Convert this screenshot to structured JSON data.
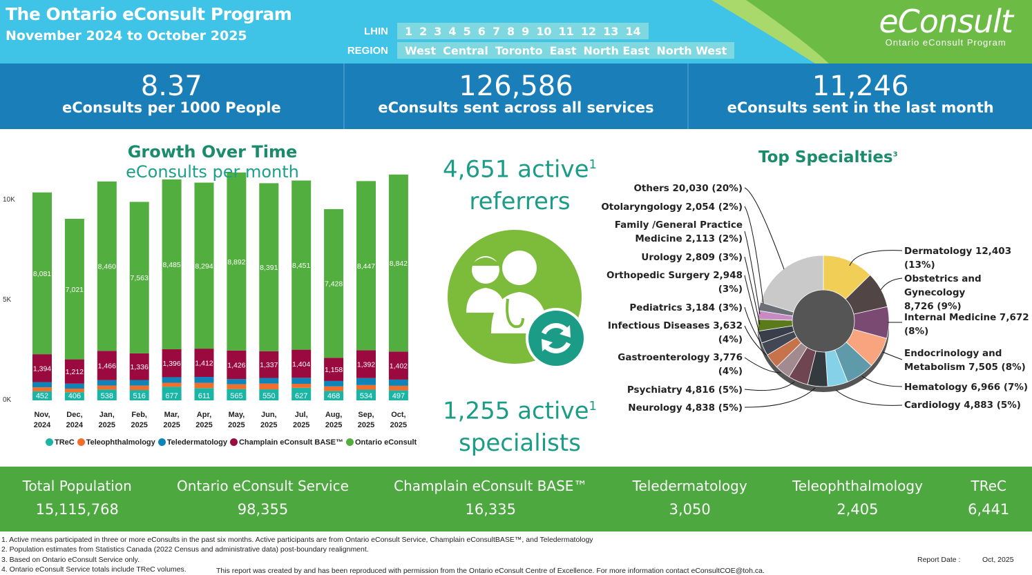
{
  "header": {
    "title": "The Ontario eConsult Program",
    "subtitle": "November 2024 to October 2025",
    "lhin_label": "LHIN",
    "region_label": "REGION",
    "lhins": [
      "1",
      "2",
      "3",
      "4",
      "5",
      "6",
      "7",
      "8",
      "9",
      "10",
      "11",
      "12",
      "13",
      "14"
    ],
    "regions": [
      "West",
      "Central",
      "Toronto",
      "East",
      "North East",
      "North West"
    ],
    "logo_text": "eConsult",
    "logo_sub": "Ontario eConsult Program"
  },
  "kpis": [
    {
      "value": "8.37",
      "label": "eConsults per 1000 People"
    },
    {
      "value": "126,586",
      "label": "eConsults sent across all services"
    },
    {
      "value": "11,246",
      "label": "eConsults sent in the last month"
    }
  ],
  "middle": {
    "referrers_value": "4,651 active",
    "referrers_sup": "1",
    "referrers_label": "referrers",
    "specialists_value": "1,255 active",
    "specialists_sup": "1",
    "specialists_label": "specialists"
  },
  "chart_data": [
    {
      "type": "bar",
      "stacked": true,
      "title": "Growth Over Time",
      "subtitle": "eConsults per month",
      "ylim": [
        0,
        12000
      ],
      "yticks": [
        "0K",
        "5K",
        "10K"
      ],
      "categories": [
        "Nov, 2024",
        "Dec, 2024",
        "Jan, 2025",
        "Feb, 2025",
        "Mar, 2025",
        "Apr, 2025",
        "May, 2025",
        "Jun, 2025",
        "Jul, 2025",
        "Aug, 2025",
        "Sep, 2025",
        "Oct, 2025"
      ],
      "series": [
        {
          "name": "TReC",
          "color": "#1bb5a5",
          "values": [
            452,
            406,
            538,
            516,
            677,
            611,
            565,
            550,
            627,
            468,
            534,
            497
          ],
          "labeled": true
        },
        {
          "name": "Teleophthalmology",
          "color": "#f26f2b",
          "values": [
            200,
            180,
            200,
            220,
            200,
            260,
            240,
            290,
            200,
            230,
            230,
            230
          ],
          "labeled": false
        },
        {
          "name": "Teledermatology",
          "color": "#0f84b8",
          "values": [
            260,
            250,
            270,
            280,
            280,
            300,
            260,
            280,
            300,
            270,
            350,
            310
          ],
          "labeled": false
        },
        {
          "name": "Champlain eConsult BASE™",
          "color": "#9b0a3f",
          "values": [
            1394,
            1212,
            1466,
            1336,
            1396,
            1412,
            1426,
            1337,
            1404,
            1158,
            1392,
            1402
          ],
          "labeled": true
        },
        {
          "name": "Ontario eConsult",
          "color": "#52ae3e",
          "values": [
            8081,
            7021,
            8460,
            7563,
            8485,
            8294,
            8892,
            8391,
            8451,
            7428,
            8447,
            8842
          ],
          "labeled": true
        }
      ]
    },
    {
      "type": "pie",
      "title": "Top Specialties",
      "title_sup": "3",
      "slices": [
        {
          "label": "Dermatology 12,403 (13%)",
          "value": 12403,
          "color": "#f1cf56"
        },
        {
          "label": "Obstetrics and Gynecology 8,726 (9%)",
          "value": 8726,
          "color": "#514545"
        },
        {
          "label": "Internal Medicine 7,672 (8%)",
          "value": 7672,
          "color": "#7b4a72"
        },
        {
          "label": "Endocrinology and Metabolism 7,505 (8%)",
          "value": 7505,
          "color": "#f7a47f"
        },
        {
          "label": "Hematology 6,966 (7%)",
          "value": 6966,
          "color": "#5f9aab"
        },
        {
          "label": "Cardiology 4,883 (5%)",
          "value": 4883,
          "color": "#84d1e8"
        },
        {
          "label": "Neurology 4,838 (5%)",
          "value": 4838,
          "color": "#343b3e"
        },
        {
          "label": "Psychiatry 4,816 (5%)",
          "value": 4816,
          "color": "#6f4552"
        },
        {
          "label": "Gastroenterology 3,776 (4%)",
          "value": 3776,
          "color": "#a28b90"
        },
        {
          "label": "Infectious Diseases 3,632 (4%)",
          "value": 3632,
          "color": "#c6724b"
        },
        {
          "label": "Pediatrics 3,184 (3%)",
          "value": 3184,
          "color": "#414853"
        },
        {
          "label": "Orthopedic Surgery 2,948 (3%)",
          "value": 2948,
          "color": "#383e4a"
        },
        {
          "label": "Urology 2,809 (3%)",
          "value": 2809,
          "color": "#5a7a1c"
        },
        {
          "label": "Family /General Practice Medicine 2,113 (2%)",
          "value": 2113,
          "color": "#c58bc2"
        },
        {
          "label": "Otolaryngology 2,054 (2%)",
          "value": 2054,
          "color": "#6b7078"
        },
        {
          "label": "Others 20,030 (20%)",
          "value": 20030,
          "color": "#c9c9c9"
        }
      ]
    }
  ],
  "specialty_labels": {
    "others": "Others 20,030 (20%)",
    "oto": "Otolaryngology 2,054 (2%)",
    "family1": "Family /General Practice",
    "family2": "Medicine 2,113 (2%)",
    "uro": "Urology 2,809 (3%)",
    "ortho1": "Orthopedic Surgery 2,948",
    "ortho2": "(3%)",
    "peds": "Pediatrics 3,184 (3%)",
    "inf1": "Infectious Diseases 3,632",
    "inf2": "(4%)",
    "gastro1": "Gastroenterology 3,776",
    "gastro2": "(4%)",
    "psych": "Psychiatry 4,816 (5%)",
    "neuro": "Neurology 4,838 (5%)",
    "derm": "Dermatology 12,403 (13%)",
    "obgyn1": "Obstetrics and Gynecology",
    "obgyn2": "8,726 (9%)",
    "im1": "Internal Medicine 7,672",
    "im2": "(8%)",
    "endo1": "Endocrinology and",
    "endo2": "Metabolism 7,505 (8%)",
    "hema": "Hematology 6,966 (7%)",
    "cardio": "Cardiology 4,883 (5%)"
  },
  "bottom": [
    {
      "label": "Total Population",
      "value": "15,115,768"
    },
    {
      "label": "Ontario eConsult Service",
      "value": "98,355"
    },
    {
      "label": "Champlain eConsult BASE™",
      "value": "16,335"
    },
    {
      "label": "Teledermatology",
      "value": "3,050"
    },
    {
      "label": "Teleophthalmology",
      "value": "2,405"
    },
    {
      "label": "TReC",
      "value": "6,441"
    }
  ],
  "footnotes": [
    "1. Active means participated in three or more eConsults in the past six months. Active participants are from Ontario eConsult Service, Champlain eConsultBASE™, and Teledermatology",
    "2. Population estimates from Statistics Canada (2022 Census and administrative data) post-boundary realignment.",
    "3. Based on Ontario eConsult Service only.",
    "4. Ontario eConsult Service totals include TReC volumes."
  ],
  "credit": "This report was created by and has been reproduced with permission from the Ontario eConsult Centre of Excellence. For more information contact eConsultCOE@toh.ca.",
  "report_date_label": "Report Date :",
  "report_date": "Oct, 2025"
}
